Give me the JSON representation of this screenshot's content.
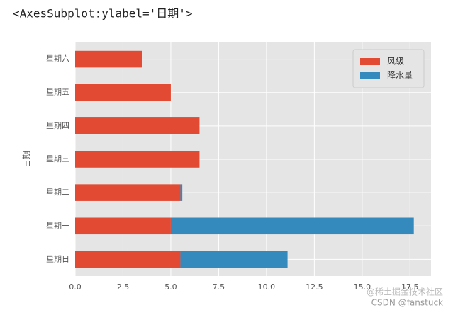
{
  "output_label": "<AxesSubplot:ylabel='日期'>",
  "watermarks": [
    "@稀土掘金技术社区",
    "CSDN @fanstuck"
  ],
  "chart_data": {
    "type": "stacked-barh",
    "ylabel": "日期",
    "categories": [
      "星期日",
      "星期一",
      "星期二",
      "星期三",
      "星期四",
      "星期五",
      "星期六"
    ],
    "series": [
      {
        "name": "风级",
        "color": "#E24A33",
        "values": [
          5.5,
          5,
          5.5,
          6.5,
          6.5,
          5,
          3.5
        ]
      },
      {
        "name": "降水量",
        "color": "#348ABD",
        "values": [
          5.6,
          12.7,
          0.1,
          0,
          0,
          0,
          0
        ]
      }
    ],
    "xlim": [
      0,
      18.6
    ],
    "xticks": [
      {
        "value": 0,
        "label": "0.0"
      },
      2.5,
      {
        "value": 5,
        "label": "5.0"
      },
      7.5,
      {
        "value": 10,
        "label": "10.0"
      },
      12.5,
      {
        "value": 15,
        "label": "15.0"
      },
      17.5
    ],
    "grid": true,
    "legend": "upper right"
  }
}
